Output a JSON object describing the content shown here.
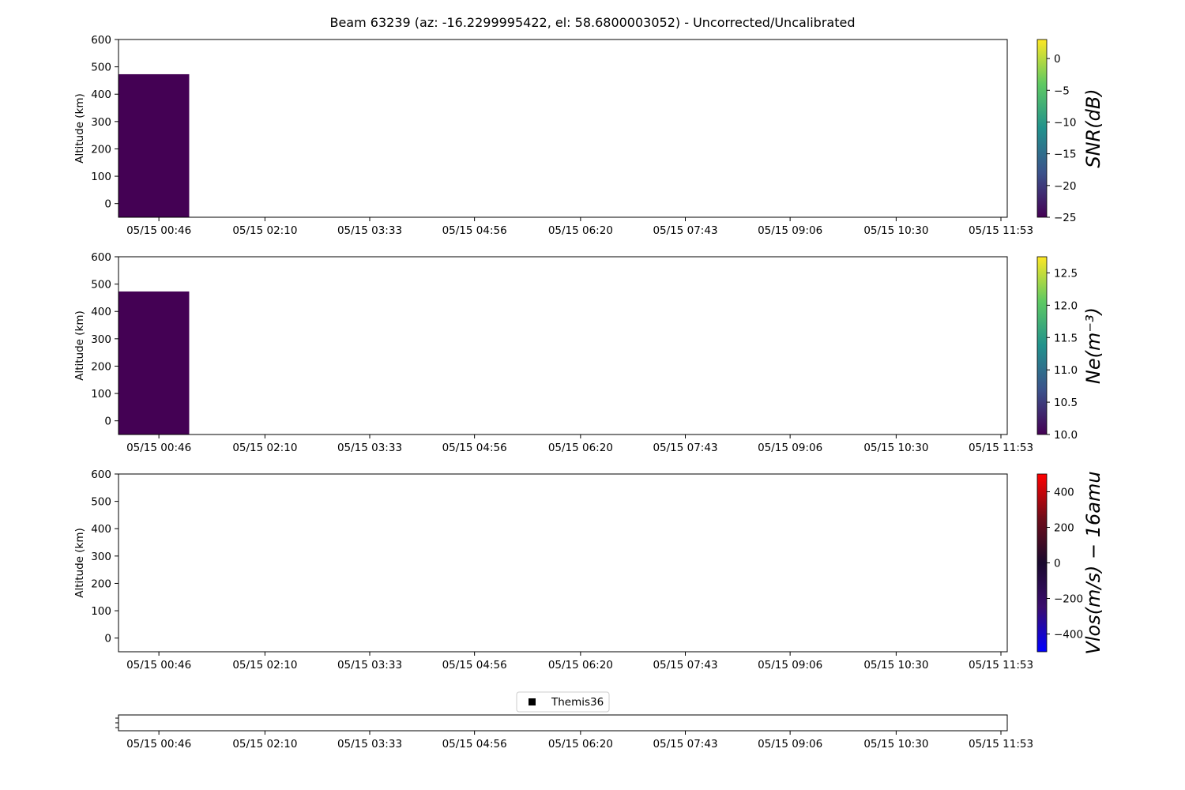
{
  "figure": {
    "title": "Beam 63239 (az: -16.2299995422, el: 58.6800003052) - Uncorrected/Uncalibrated"
  },
  "time_ticks": [
    "05/15 00:46",
    "05/15 02:10",
    "05/15 03:33",
    "05/15 04:56",
    "05/15 06:20",
    "05/15 07:43",
    "05/15 09:06",
    "05/15 10:30",
    "05/15 11:53"
  ],
  "chart_data": [
    {
      "type": "heatmap",
      "panel": "snr",
      "ylabel": "Altitude (km)",
      "ylim": [
        -50,
        600
      ],
      "yticks": [
        0,
        100,
        200,
        300,
        400,
        500,
        600
      ],
      "xlim": [
        "05/15 00:14",
        "05/15 11:58"
      ],
      "cells": [
        {
          "x_start": "05/15 00:14",
          "x_end": "05/15 01:10",
          "y_start": -50,
          "y_end": 473,
          "value": -25
        }
      ],
      "colorbar": {
        "label": "SNR(dB)",
        "vmin": -25,
        "vmax": 3,
        "ticks": [
          0,
          -5,
          -10,
          -15,
          -20,
          -25
        ],
        "colormap": "viridis"
      }
    },
    {
      "type": "heatmap",
      "panel": "ne",
      "ylabel": "Altitude (km)",
      "ylim": [
        -50,
        600
      ],
      "yticks": [
        0,
        100,
        200,
        300,
        400,
        500,
        600
      ],
      "xlim": [
        "05/15 00:14",
        "05/15 11:58"
      ],
      "cells": [
        {
          "x_start": "05/15 00:14",
          "x_end": "05/15 01:10",
          "y_start": -50,
          "y_end": 473,
          "value": 10.0
        }
      ],
      "colorbar": {
        "label": "Ne(m⁻³)",
        "vmin": 10.0,
        "vmax": 12.75,
        "ticks": [
          "12.5",
          "12.0",
          "11.5",
          "11.0",
          "10.5",
          "10.0"
        ],
        "colormap": "viridis"
      }
    },
    {
      "type": "heatmap",
      "panel": "vlos",
      "ylabel": "Altitude (km)",
      "ylim": [
        -50,
        600
      ],
      "yticks": [
        0,
        100,
        200,
        300,
        400,
        500,
        600
      ],
      "xlim": [
        "05/15 00:14",
        "05/15 11:58"
      ],
      "cells": [],
      "colorbar": {
        "label": "Vlos(m/s) − 16amu",
        "vmin": -500,
        "vmax": 500,
        "ticks": [
          400,
          200,
          0,
          -200,
          -400
        ],
        "colormap": "bwr-dark"
      }
    },
    {
      "type": "scatter",
      "panel": "events",
      "legend": {
        "entries": [
          {
            "name": "Themis36",
            "color": "#000000"
          }
        ],
        "placement": "top-center"
      },
      "xlim": [
        "05/15 00:14",
        "05/15 11:58"
      ]
    }
  ],
  "colors": {
    "cell": "#440154",
    "viridis": [
      "#440154",
      "#3b528b",
      "#21918c",
      "#5ec962",
      "#fde725"
    ],
    "bwr_dark": [
      "#0000ff",
      "#3a0d6e",
      "#1a0a2e",
      "#6e0d1a",
      "#ff0000"
    ]
  }
}
